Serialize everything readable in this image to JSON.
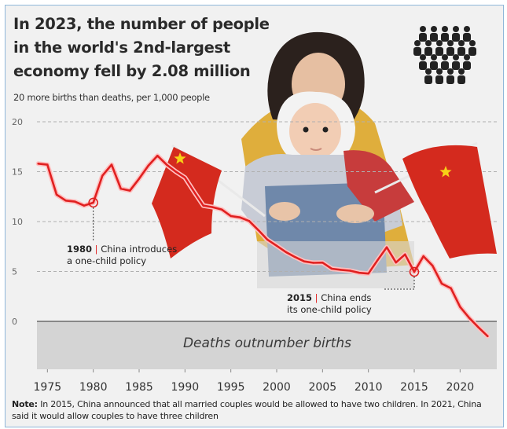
{
  "chart_data": {
    "type": "line",
    "title_lines": [
      "In 2023, the number of people",
      "in the world's 2nd-largest",
      "economy fell by 2.08 million"
    ],
    "subtitle": "20 more births than deaths, per 1,000 people",
    "x": [
      1974,
      1975,
      1976,
      1977,
      1978,
      1979,
      1980,
      1981,
      1982,
      1983,
      1984,
      1985,
      1986,
      1987,
      1988,
      1989,
      1990,
      1991,
      1992,
      1993,
      1994,
      1995,
      1996,
      1997,
      1998,
      1999,
      2000,
      2001,
      2002,
      2003,
      2004,
      2005,
      2006,
      2007,
      2008,
      2009,
      2010,
      2011,
      2012,
      2013,
      2014,
      2015,
      2016,
      2017,
      2018,
      2019,
      2020,
      2021,
      2022,
      2023
    ],
    "series": [
      {
        "values": [
          15.8,
          15.7,
          12.7,
          12.1,
          12.0,
          11.6,
          11.9,
          14.6,
          15.7,
          13.3,
          13.1,
          14.3,
          15.6,
          16.6,
          15.7,
          15.0,
          14.4,
          12.98,
          11.6,
          11.45,
          11.21,
          10.55,
          10.42,
          10.06,
          9.14,
          8.18,
          7.58,
          6.95,
          6.45,
          6.01,
          5.87,
          5.89,
          5.28,
          5.17,
          5.08,
          4.87,
          4.79,
          6.13,
          7.43,
          5.9,
          6.71,
          4.96,
          6.53,
          5.58,
          3.78,
          3.32,
          1.45,
          0.34,
          -0.6,
          -1.48
        ],
        "color": "#e02020"
      }
    ],
    "xticks": [
      1975,
      1980,
      1985,
      1990,
      1995,
      2000,
      2005,
      2010,
      2015,
      2020
    ],
    "yticks": [
      0,
      5,
      10,
      15,
      20
    ],
    "xlim": [
      1973,
      2024
    ],
    "ylim": [
      -4.8,
      20
    ],
    "negative_band_label": "Deaths outnumber births",
    "annotations": [
      {
        "year": 1980,
        "value": 11.9,
        "label_bold": "1980",
        "label_line1": "China introduces",
        "label_line2": "a one-child policy"
      },
      {
        "year": 2015,
        "value": 4.96,
        "label_bold": "2015",
        "label_line1": "China ends",
        "label_line2": "its one-child policy"
      }
    ],
    "colors": {
      "line": "#e02020",
      "line_glow": "#ffc0c0",
      "band": "#d4d4d4",
      "grid": "#b0b0b0",
      "flag": "#d42a1e",
      "star": "#f7d117"
    }
  },
  "note": {
    "prefix": "Note:",
    "text": "In 2015, China announced that all married couples would be allowed to have two children. In 2021, China said it would allow couples to have three children"
  },
  "icons": [
    "people-crowd-icon",
    "china-flag-icon"
  ]
}
